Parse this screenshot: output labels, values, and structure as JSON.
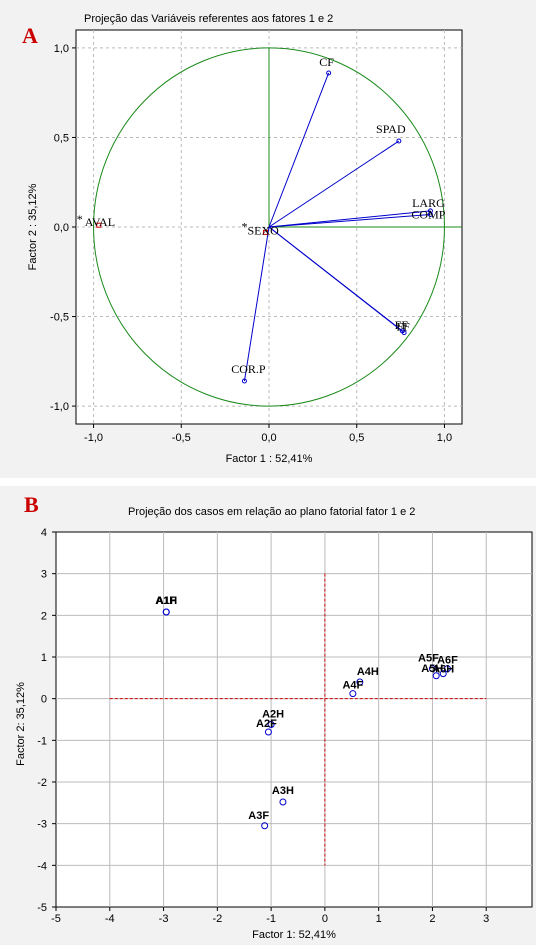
{
  "chart_data": [
    {
      "type": "scatter",
      "panel_letter": "A",
      "title": "Projeção das Variáveis referentes aos fatores 1 e 2",
      "xlabel": "Factor 1 : 52,41%",
      "ylabel": "Factor 2 : 35,12%",
      "xlim": [
        -1.1,
        1.1
      ],
      "ylim": [
        -1.1,
        1.1
      ],
      "xticks": [
        "-1,0",
        "-0,5",
        "0,0",
        "0,5",
        "1,0"
      ],
      "yticks": [
        "1,0",
        "0,5",
        "0,0",
        "-0,5",
        "-1,0"
      ],
      "xtick_values": [
        -1.0,
        -0.5,
        0.0,
        0.5,
        1.0
      ],
      "ytick_values": [
        1.0,
        0.5,
        0.0,
        -0.5,
        -1.0
      ],
      "grid": true,
      "unit_circle": true,
      "circle_color": "#1a8a1a",
      "vector_color": "#0000cc",
      "point_color": "#cc0000",
      "points": [
        {
          "label": "CF",
          "x": 0.34,
          "y": 0.86,
          "arrow": true
        },
        {
          "label": "SPAD",
          "x": 0.74,
          "y": 0.48,
          "arrow": true
        },
        {
          "label": "LARG",
          "x": 0.92,
          "y": 0.09,
          "arrow": true
        },
        {
          "label": "COMP",
          "x": 0.92,
          "y": 0.07,
          "arrow": true
        },
        {
          "label": "FF",
          "x": 0.76,
          "y": -0.58,
          "arrow": true
        },
        {
          "label": "FF",
          "x": 0.77,
          "y": -0.59,
          "arrow": true
        },
        {
          "label": "COR.P",
          "x": -0.14,
          "y": -0.86,
          "arrow": true
        },
        {
          "label": "AVAL",
          "x": -0.97,
          "y": 0.01,
          "arrow": false
        },
        {
          "label": "SEXO",
          "x": -0.02,
          "y": -0.03,
          "arrow": false
        }
      ]
    },
    {
      "type": "scatter",
      "panel_letter": "B",
      "title": "Projeção dos casos em relação ao plano fatorial fator 1 e 2",
      "xlabel": "Factor 1: 52,41%",
      "ylabel": "Factor 2: 35,12%",
      "xlim": [
        -5,
        4
      ],
      "ylim": [
        -5,
        4
      ],
      "xticks": [
        "-5",
        "-4",
        "-3",
        "-2",
        "-1",
        "0",
        "1",
        "2",
        "3"
      ],
      "yticks": [
        "4",
        "3",
        "2",
        "1",
        "0",
        "-1",
        "-2",
        "-3",
        "-4",
        "-5"
      ],
      "xtick_values": [
        -5,
        -4,
        -3,
        -2,
        -1,
        0,
        1,
        2,
        3
      ],
      "ytick_values": [
        4,
        3,
        2,
        1,
        0,
        -1,
        -2,
        -3,
        -4,
        -5
      ],
      "grid": true,
      "point_color": "#0000cc",
      "reference_line_color": "#cc0000",
      "points": [
        {
          "label": "A1F",
          "x": -2.95,
          "y": 2.08
        },
        {
          "label": "A1H",
          "x": -2.95,
          "y": 2.08
        },
        {
          "label": "A2H",
          "x": -1.0,
          "y": -0.62
        },
        {
          "label": "A2F",
          "x": -1.05,
          "y": -0.8
        },
        {
          "label": "A3H",
          "x": -0.78,
          "y": -2.48
        },
        {
          "label": "A3F",
          "x": -1.12,
          "y": -3.05
        },
        {
          "label": "A4H",
          "x": 0.65,
          "y": 0.4
        },
        {
          "label": "A4F",
          "x": 0.52,
          "y": 0.12
        },
        {
          "label": "A5F",
          "x": 2.0,
          "y": 0.72
        },
        {
          "label": "A5H",
          "x": 2.07,
          "y": 0.55
        },
        {
          "label": "A6F",
          "x": 2.28,
          "y": 0.72
        },
        {
          "label": "A6H",
          "x": 2.2,
          "y": 0.6
        }
      ]
    }
  ]
}
